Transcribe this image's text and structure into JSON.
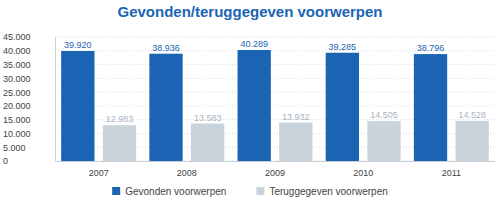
{
  "chart_data": {
    "type": "bar",
    "title": "Gevonden/teruggegeven voorwerpen",
    "categories": [
      "2007",
      "2008",
      "2009",
      "2010",
      "2011"
    ],
    "series": [
      {
        "name": "Gevonden voorwerpen",
        "color": "#1b64b4",
        "values": [
          39920,
          38936,
          40289,
          39285,
          38796
        ],
        "value_labels": [
          "39.920",
          "38.936",
          "40.289",
          "39.285",
          "38.796"
        ]
      },
      {
        "name": "Teruggegeven voorwerpen",
        "color": "#c9d3dc",
        "values": [
          12983,
          13583,
          13932,
          14505,
          14528
        ],
        "value_labels": [
          "12.983",
          "13.583",
          "13.932",
          "14.505",
          "14.528"
        ]
      }
    ],
    "ylim": [
      0,
      45000
    ],
    "yticks": [
      0,
      {
        "value": 5000,
        "label": "5.000"
      },
      {
        "value": 10000,
        "label": "10.000"
      },
      {
        "value": 15000,
        "label": "15.000"
      },
      {
        "value": 20000,
        "label": "20.000"
      },
      {
        "value": 25000,
        "label": "25.000"
      },
      {
        "value": 30000,
        "label": "30.000"
      },
      {
        "value": 35000,
        "label": "35.000"
      },
      {
        "value": 40000,
        "label": "40.000"
      },
      {
        "value": 45000,
        "label": "45.000"
      }
    ],
    "grid": true,
    "data_labels": true,
    "legend": "bottom"
  }
}
